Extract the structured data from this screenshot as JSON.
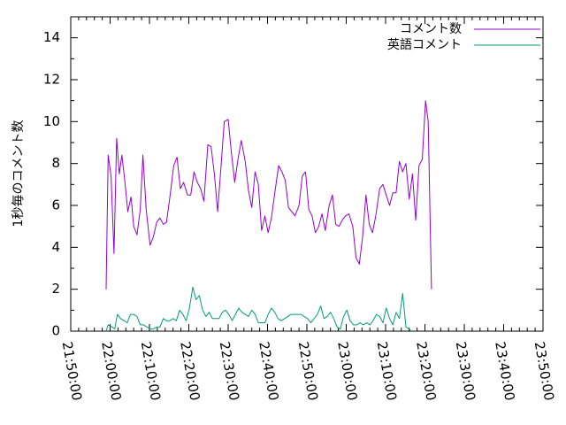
{
  "chart_data": {
    "type": "line",
    "title": "",
    "xlabel": "",
    "ylabel": "1秒毎のコメント数",
    "xlim": [
      "21:50:00",
      "23:50:00"
    ],
    "ylim": [
      0,
      15
    ],
    "xticks": [
      "21:50:00",
      "22:00:00",
      "22:10:00",
      "22:20:00",
      "22:30:00",
      "22:40:00",
      "22:50:00",
      "23:00:00",
      "23:10:00",
      "23:20:00",
      "23:30:00",
      "23:40:00",
      "23:50:00"
    ],
    "yticks": [
      "0",
      "2",
      "4",
      "6",
      "8",
      "10",
      "12",
      "14"
    ],
    "grid": false,
    "legend_position": "top-right",
    "series": [
      {
        "name": "コメント数",
        "color": "#9400d3",
        "points": [
          [
            "21:59:00",
            2.0
          ],
          [
            "21:59:30",
            8.4
          ],
          [
            "22:00:15",
            7.4
          ],
          [
            "22:01:00",
            3.7
          ],
          [
            "22:01:40",
            9.2
          ],
          [
            "22:02:20",
            7.5
          ],
          [
            "22:03:00",
            8.4
          ],
          [
            "22:03:40",
            7.3
          ],
          [
            "22:04:30",
            5.7
          ],
          [
            "22:05:20",
            6.4
          ],
          [
            "22:06:00",
            5.0
          ],
          [
            "22:06:50",
            4.6
          ],
          [
            "22:07:40",
            5.8
          ],
          [
            "22:08:20",
            8.4
          ],
          [
            "22:09:10",
            5.8
          ],
          [
            "22:10:10",
            4.1
          ],
          [
            "22:11:00",
            4.5
          ],
          [
            "22:11:50",
            5.2
          ],
          [
            "22:12:40",
            5.4
          ],
          [
            "22:13:30",
            5.1
          ],
          [
            "22:14:20",
            5.2
          ],
          [
            "22:15:20",
            6.6
          ],
          [
            "22:16:10",
            7.9
          ],
          [
            "22:17:00",
            8.3
          ],
          [
            "22:17:50",
            6.8
          ],
          [
            "22:18:40",
            7.1
          ],
          [
            "22:19:40",
            6.5
          ],
          [
            "22:20:30",
            6.5
          ],
          [
            "22:21:20",
            7.6
          ],
          [
            "22:22:10",
            7.1
          ],
          [
            "22:23:00",
            6.8
          ],
          [
            "22:23:50",
            6.2
          ],
          [
            "22:24:50",
            8.9
          ],
          [
            "22:25:40",
            8.8
          ],
          [
            "22:26:30",
            7.5
          ],
          [
            "22:27:20",
            5.7
          ],
          [
            "22:28:10",
            7.8
          ],
          [
            "22:29:00",
            10.0
          ],
          [
            "22:30:00",
            10.1
          ],
          [
            "22:30:50",
            8.5
          ],
          [
            "22:31:40",
            7.1
          ],
          [
            "22:32:30",
            8.2
          ],
          [
            "22:33:20",
            9.1
          ],
          [
            "22:34:20",
            8.1
          ],
          [
            "22:35:10",
            6.7
          ],
          [
            "22:36:00",
            5.9
          ],
          [
            "22:36:50",
            7.6
          ],
          [
            "22:37:40",
            7.0
          ],
          [
            "22:38:30",
            4.8
          ],
          [
            "22:39:20",
            5.5
          ],
          [
            "22:40:10",
            4.7
          ],
          [
            "22:41:00",
            5.4
          ],
          [
            "22:41:50",
            6.6
          ],
          [
            "22:42:50",
            7.9
          ],
          [
            "22:43:40",
            7.6
          ],
          [
            "22:44:30",
            7.2
          ],
          [
            "22:45:20",
            5.9
          ],
          [
            "22:46:10",
            5.7
          ],
          [
            "22:47:00",
            5.5
          ],
          [
            "22:48:00",
            6.0
          ],
          [
            "22:48:50",
            7.4
          ],
          [
            "22:49:40",
            7.6
          ],
          [
            "22:50:30",
            5.8
          ],
          [
            "22:51:20",
            5.5
          ],
          [
            "22:52:10",
            4.7
          ],
          [
            "22:53:00",
            5.0
          ],
          [
            "22:53:50",
            5.6
          ],
          [
            "22:54:40",
            4.8
          ],
          [
            "22:55:40",
            6.0
          ],
          [
            "22:56:30",
            6.5
          ],
          [
            "22:57:20",
            5.1
          ],
          [
            "22:58:10",
            5.0
          ],
          [
            "22:59:00",
            5.3
          ],
          [
            "22:59:50",
            5.5
          ],
          [
            "23:00:40",
            5.6
          ],
          [
            "23:01:40",
            5.0
          ],
          [
            "23:02:30",
            3.5
          ],
          [
            "23:03:20",
            3.2
          ],
          [
            "23:04:10",
            4.5
          ],
          [
            "23:05:00",
            6.5
          ],
          [
            "23:05:50",
            5.1
          ],
          [
            "23:06:40",
            4.7
          ],
          [
            "23:07:30",
            5.5
          ],
          [
            "23:08:30",
            6.8
          ],
          [
            "23:09:20",
            7.0
          ],
          [
            "23:10:10",
            6.5
          ],
          [
            "23:11:00",
            6.0
          ],
          [
            "23:11:50",
            6.6
          ],
          [
            "23:12:40",
            6.6
          ],
          [
            "23:13:30",
            8.1
          ],
          [
            "23:14:20",
            7.6
          ],
          [
            "23:15:10",
            8.0
          ],
          [
            "23:16:00",
            6.3
          ],
          [
            "23:16:50",
            7.5
          ],
          [
            "23:17:40",
            5.3
          ],
          [
            "23:18:30",
            7.9
          ],
          [
            "23:19:20",
            8.2
          ],
          [
            "23:20:10",
            11.0
          ],
          [
            "23:20:50",
            10.0
          ],
          [
            "23:21:40",
            2.0
          ]
        ]
      },
      {
        "name": "英語コメント",
        "color": "#009e73",
        "points": [
          [
            "21:59:00",
            0.0
          ],
          [
            "21:59:30",
            0.3
          ],
          [
            "22:00:30",
            0.2
          ],
          [
            "22:01:10",
            0.1
          ],
          [
            "22:01:50",
            0.8
          ],
          [
            "22:02:40",
            0.6
          ],
          [
            "22:03:30",
            0.5
          ],
          [
            "22:04:20",
            0.4
          ],
          [
            "22:05:10",
            0.8
          ],
          [
            "22:06:00",
            0.8
          ],
          [
            "22:06:50",
            0.7
          ],
          [
            "22:07:40",
            0.3
          ],
          [
            "22:08:30",
            0.3
          ],
          [
            "22:09:20",
            0.2
          ],
          [
            "22:10:10",
            0.1
          ],
          [
            "22:11:00",
            0.1
          ],
          [
            "22:11:50",
            0.2
          ],
          [
            "22:12:40",
            0.2
          ],
          [
            "22:13:30",
            0.6
          ],
          [
            "22:14:20",
            0.5
          ],
          [
            "22:15:10",
            0.5
          ],
          [
            "22:16:00",
            0.6
          ],
          [
            "22:16:50",
            0.5
          ],
          [
            "22:17:40",
            1.0
          ],
          [
            "22:18:30",
            0.8
          ],
          [
            "22:19:20",
            0.5
          ],
          [
            "22:20:10",
            1.1
          ],
          [
            "22:21:00",
            2.1
          ],
          [
            "22:21:50",
            1.5
          ],
          [
            "22:22:40",
            1.7
          ],
          [
            "22:23:30",
            1.0
          ],
          [
            "22:24:20",
            0.7
          ],
          [
            "22:25:10",
            0.9
          ],
          [
            "22:26:00",
            0.6
          ],
          [
            "22:26:50",
            0.6
          ],
          [
            "22:27:40",
            0.6
          ],
          [
            "22:28:30",
            0.9
          ],
          [
            "22:29:20",
            1.0
          ],
          [
            "22:30:10",
            0.8
          ],
          [
            "22:31:00",
            0.5
          ],
          [
            "22:31:50",
            0.8
          ],
          [
            "22:32:40",
            1.1
          ],
          [
            "22:33:30",
            0.9
          ],
          [
            "22:34:20",
            0.8
          ],
          [
            "22:35:10",
            0.7
          ],
          [
            "22:36:00",
            1.0
          ],
          [
            "22:36:50",
            0.8
          ],
          [
            "22:37:40",
            0.4
          ],
          [
            "22:38:30",
            0.4
          ],
          [
            "22:39:20",
            0.4
          ],
          [
            "22:40:10",
            0.8
          ],
          [
            "22:41:00",
            1.1
          ],
          [
            "22:41:50",
            0.9
          ],
          [
            "22:42:40",
            0.6
          ],
          [
            "22:43:30",
            0.5
          ],
          [
            "22:44:20",
            0.6
          ],
          [
            "22:45:10",
            0.7
          ],
          [
            "22:46:00",
            0.8
          ],
          [
            "22:46:50",
            0.8
          ],
          [
            "22:47:40",
            0.8
          ],
          [
            "22:48:30",
            0.8
          ],
          [
            "22:49:20",
            0.7
          ],
          [
            "22:50:10",
            0.6
          ],
          [
            "22:51:00",
            0.4
          ],
          [
            "22:51:50",
            0.6
          ],
          [
            "22:52:40",
            0.8
          ],
          [
            "22:53:30",
            1.2
          ],
          [
            "22:54:20",
            0.6
          ],
          [
            "22:55:10",
            0.7
          ],
          [
            "22:56:00",
            0.9
          ],
          [
            "22:56:50",
            0.6
          ],
          [
            "22:57:40",
            0.2
          ],
          [
            "22:58:30",
            0.1
          ],
          [
            "22:59:20",
            0.7
          ],
          [
            "23:00:10",
            1.0
          ],
          [
            "23:01:00",
            0.5
          ],
          [
            "23:01:50",
            0.3
          ],
          [
            "23:02:40",
            0.3
          ],
          [
            "23:03:30",
            0.4
          ],
          [
            "23:04:20",
            0.3
          ],
          [
            "23:05:10",
            0.4
          ],
          [
            "23:06:00",
            0.3
          ],
          [
            "23:06:50",
            0.5
          ],
          [
            "23:07:40",
            0.8
          ],
          [
            "23:08:30",
            0.7
          ],
          [
            "23:09:20",
            0.4
          ],
          [
            "23:10:10",
            1.1
          ],
          [
            "23:11:00",
            0.6
          ],
          [
            "23:11:50",
            0.3
          ],
          [
            "23:12:40",
            0.9
          ],
          [
            "23:13:30",
            0.6
          ],
          [
            "23:14:20",
            1.8
          ],
          [
            "23:15:10",
            0.2
          ],
          [
            "23:16:00",
            0.1
          ],
          [
            "23:16:30",
            0.0
          ]
        ]
      }
    ]
  }
}
